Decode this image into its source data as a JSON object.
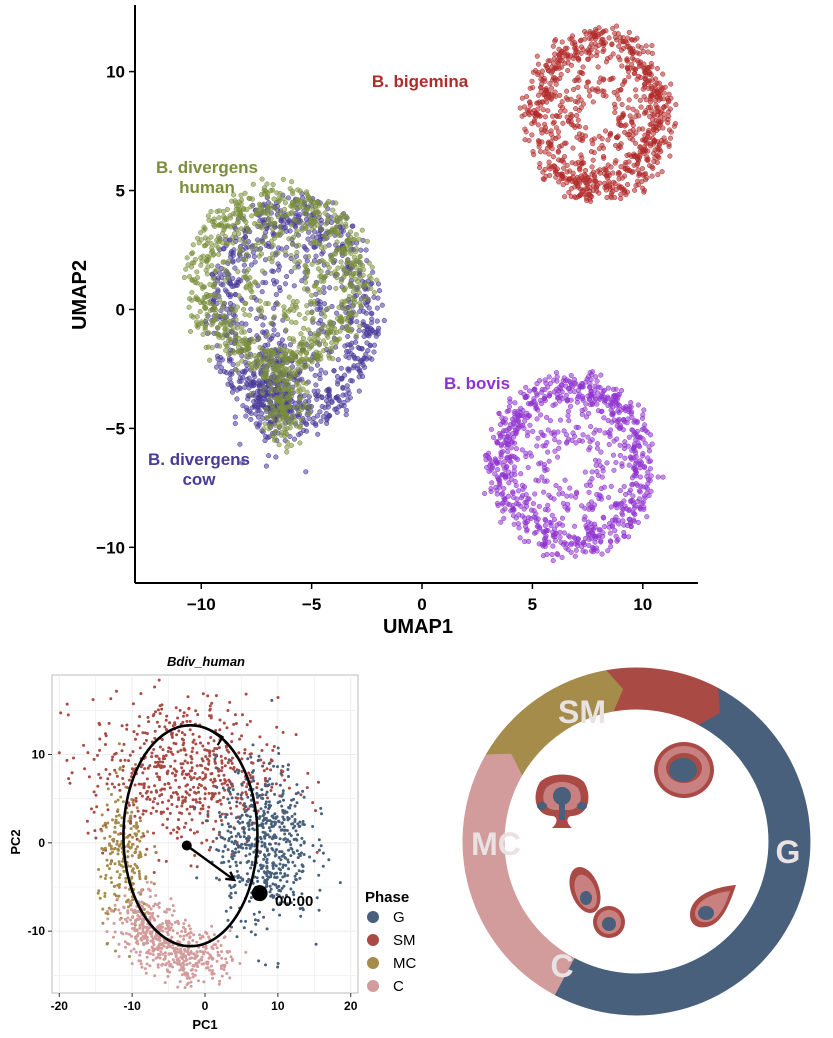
{
  "colors": {
    "bigemina": "#b22a2a",
    "div_human": "#7a8f3a",
    "div_cow": "#4a3a9a",
    "bovis": "#8f32cf",
    "G": "#48607b",
    "SM": "#a94a45",
    "MC": "#a58c4a",
    "C": "#d29c9c"
  },
  "chart_data": [
    {
      "type": "scatter",
      "xlabel": "UMAP1",
      "ylabel": "UMAP2",
      "xlim": [
        -13,
        12.5
      ],
      "ylim": [
        -11.5,
        12.8
      ],
      "x_ticks": [
        -10,
        -5,
        0,
        5,
        10
      ],
      "x_tick_labels": [
        "−10",
        "−5",
        "0",
        "5",
        "10"
      ],
      "y_ticks": [
        -10,
        -5,
        0,
        5,
        10
      ],
      "y_tick_labels": [
        "−10",
        "−5",
        "0",
        "5",
        "10"
      ],
      "grid": false,
      "clusters": [
        {
          "name": "B. bigemina",
          "color_key": "bigemina",
          "label": "B. bigemina",
          "center": [
            8,
            8.2
          ],
          "rx": 3.3,
          "ry": 3.6
        },
        {
          "name": "B. divergens human",
          "color_key": "div_human",
          "label": [
            "B. divergens",
            "human"
          ],
          "center": [
            -6.5,
            1.2
          ],
          "rx": 4.2,
          "ry": 4.0
        },
        {
          "name": "B. divergens cow",
          "color_key": "div_cow",
          "label": [
            "B. divergens",
            "cow"
          ],
          "center": [
            -5.8,
            -0.2
          ],
          "rx": 3.8,
          "ry": 5.0
        },
        {
          "name": "B. bovis",
          "color_key": "bovis",
          "label": "B. bovis",
          "center": [
            6.8,
            -6.5
          ],
          "rx": 3.8,
          "ry": 3.8
        }
      ]
    },
    {
      "type": "scatter",
      "title": "Bdiv_human",
      "xlabel": "PC1",
      "ylabel": "PC2",
      "xlim": [
        -21,
        21
      ],
      "ylim": [
        -17,
        19
      ],
      "x_ticks": [
        -20,
        -10,
        0,
        10,
        20
      ],
      "x_tick_labels": [
        "-20",
        "-10",
        "0",
        "10",
        "20"
      ],
      "y_ticks": [
        -10,
        0,
        10
      ],
      "y_tick_labels": [
        "-10",
        "0",
        "10"
      ],
      "grid": true,
      "legend": {
        "title": "Phase",
        "position": "right",
        "entries": [
          "G",
          "SM",
          "MC",
          "C"
        ]
      },
      "annotation": {
        "text": "00:00",
        "point": [
          7.5,
          -5.7
        ]
      },
      "vector": {
        "from": [
          -2.5,
          -0.3
        ],
        "to": [
          4,
          -4.2
        ]
      },
      "cycle_ellipse": {
        "center": [
          -2,
          0.8
        ],
        "rx": 9.2,
        "ry": 12.5,
        "direction": "counterclockwise"
      },
      "phases": [
        {
          "name": "G",
          "color_key": "G",
          "center": [
            8,
            0
          ]
        },
        {
          "name": "SM",
          "color_key": "SM",
          "center": [
            -4,
            8
          ]
        },
        {
          "name": "MC",
          "color_key": "MC",
          "center": [
            -11,
            -2
          ]
        },
        {
          "name": "C",
          "color_key": "C",
          "center": [
            -3,
            -11
          ]
        }
      ]
    }
  ],
  "cycle_diagram": {
    "segments": [
      {
        "label": "G",
        "color_key": "G"
      },
      {
        "label": "SM",
        "color_key": "SM"
      },
      {
        "label": "MC",
        "color_key": "MC"
      },
      {
        "label": "C",
        "color_key": "C"
      }
    ]
  }
}
